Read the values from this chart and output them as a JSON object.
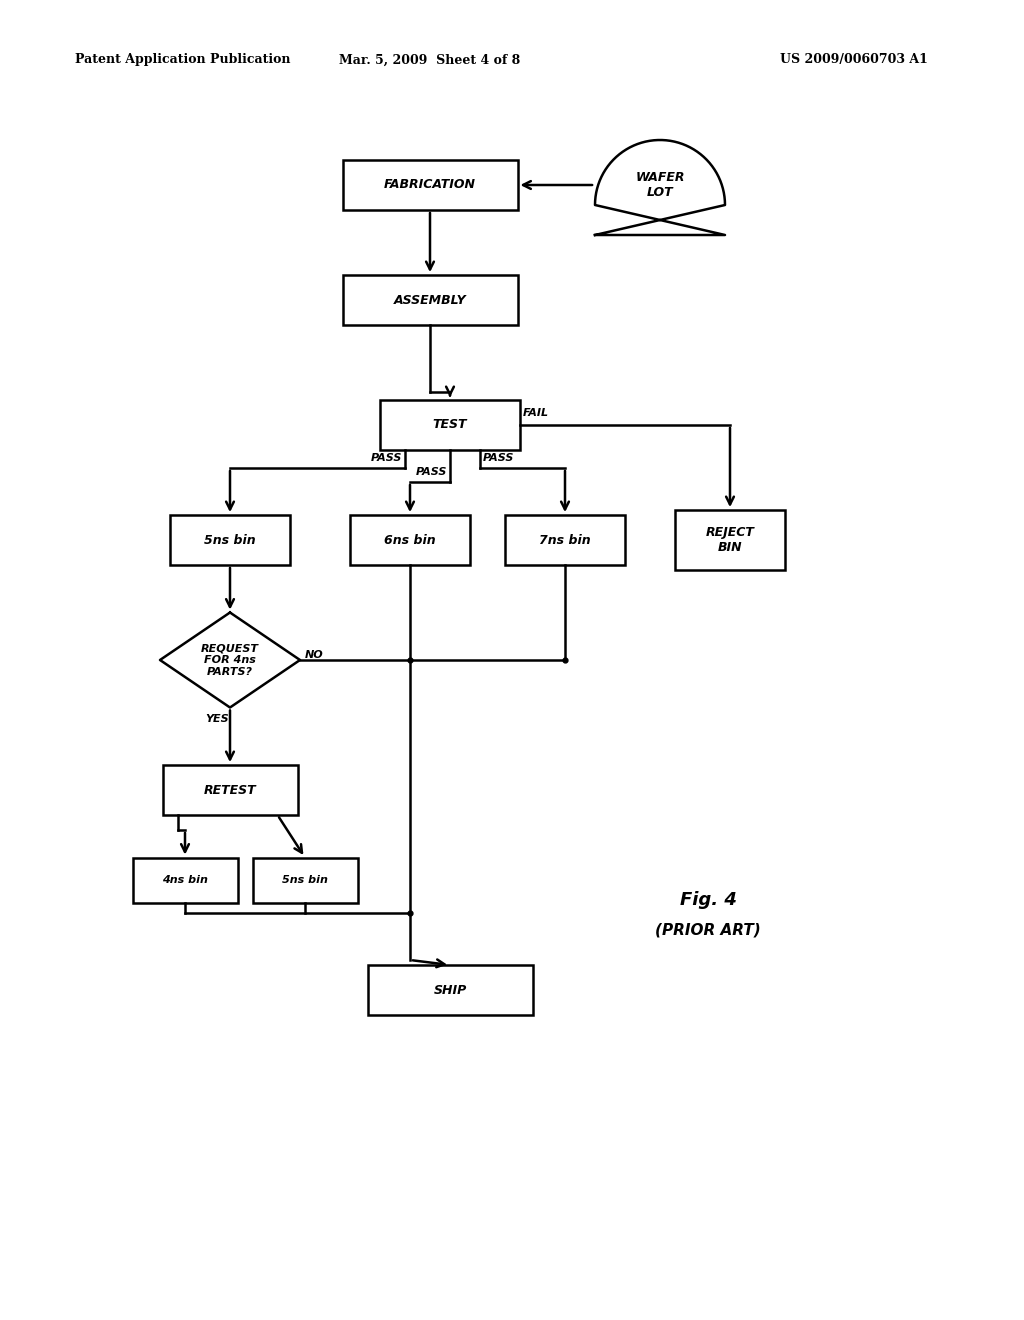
{
  "bg_color": "#ffffff",
  "header_left": "Patent Application Publication",
  "header_mid": "Mar. 5, 2009  Sheet 4 of 8",
  "header_right": "US 2009/0060703 A1",
  "fig_label": "Fig. 4",
  "fig_sublabel": "(PRIOR ART)"
}
